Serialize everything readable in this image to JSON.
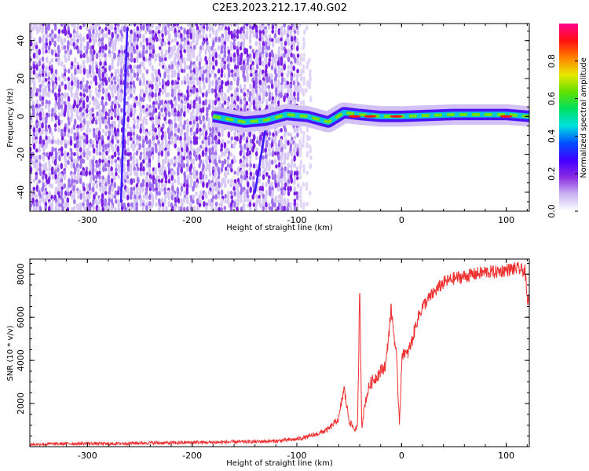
{
  "title": "C2E3.2023.212.17.40.G02",
  "chart_data": [
    {
      "type": "heatmap",
      "xlabel": "Height of straight line (km)",
      "ylabel": "Frequency (Hz)",
      "xlim": [
        -355,
        122
      ],
      "ylim": [
        -50,
        49
      ],
      "x_ticks": [
        -300,
        -200,
        -100,
        0,
        100
      ],
      "y_ticks": [
        -40,
        -20,
        0,
        20,
        40
      ],
      "grid": false,
      "colorbar": {
        "label": "Normalized spectral amplitude",
        "range": [
          0,
          1
        ],
        "ticks": [
          0.0,
          0.2,
          0.4,
          0.6,
          0.8
        ],
        "colors": [
          "#ffffff",
          "#c8b4f0",
          "#8a2be2",
          "#4000ff",
          "#0050ff",
          "#00e0e0",
          "#00e060",
          "#60e000",
          "#e8e800",
          "#ff8000",
          "#ff1010",
          "#ff0090"
        ]
      },
      "features": [
        {
          "name": "noise-field",
          "x_range": [
            -355,
            -100
          ],
          "y_range": [
            -50,
            49
          ],
          "level": 0.15
        },
        {
          "name": "streak",
          "points": [
            [
              -268,
              -45
            ],
            [
              -262,
              46
            ]
          ],
          "level": 0.25
        },
        {
          "name": "streak",
          "points": [
            [
              -140,
              -40
            ],
            [
              -128,
              0
            ]
          ],
          "level": 0.25
        },
        {
          "name": "signal-band",
          "points": [
            [
              -180,
              0
            ],
            [
              -150,
              -3
            ],
            [
              -130,
              -2
            ],
            [
              -110,
              1
            ],
            [
              -90,
              0
            ],
            [
              -70,
              -3
            ],
            [
              -55,
              2
            ],
            [
              -40,
              1
            ],
            [
              -20,
              0
            ],
            [
              0,
              0
            ],
            [
              50,
              1
            ],
            [
              100,
              1
            ],
            [
              122,
              0
            ]
          ],
          "width_hz": 6,
          "level": 0.6
        }
      ]
    },
    {
      "type": "line",
      "xlabel": "Height of straight line (km)",
      "ylabel": "SNR (10 * v/v)",
      "xlim": [
        -355,
        122
      ],
      "ylim": [
        0,
        8700
      ],
      "x_ticks": [
        -300,
        -200,
        -100,
        0,
        100
      ],
      "y_ticks": [
        2000,
        4000,
        6000,
        8000
      ],
      "grid": false,
      "series": [
        {
          "color": "#f03030",
          "x": [
            -355,
            -340,
            -320,
            -300,
            -280,
            -260,
            -240,
            -220,
            -200,
            -180,
            -160,
            -140,
            -120,
            -110,
            -100,
            -90,
            -80,
            -70,
            -60,
            -55,
            -50,
            -45,
            -42,
            -40,
            -38,
            -35,
            -32,
            -30,
            -25,
            -20,
            -15,
            -10,
            -5,
            -2,
            0,
            2,
            5,
            10,
            15,
            20,
            30,
            40,
            50,
            60,
            70,
            80,
            90,
            100,
            110,
            118,
            120,
            122
          ],
          "y": [
            100,
            120,
            140,
            150,
            130,
            160,
            180,
            170,
            200,
            200,
            220,
            230,
            260,
            300,
            350,
            450,
            600,
            800,
            1300,
            2700,
            1200,
            800,
            900,
            7400,
            900,
            2000,
            2600,
            2900,
            3200,
            3500,
            3800,
            6400,
            4200,
            1100,
            3800,
            4500,
            4200,
            4900,
            5900,
            6500,
            7100,
            7600,
            7800,
            7900,
            8000,
            8100,
            8100,
            8200,
            8250,
            8150,
            6700,
            6900
          ],
          "noise": 250
        }
      ]
    }
  ]
}
